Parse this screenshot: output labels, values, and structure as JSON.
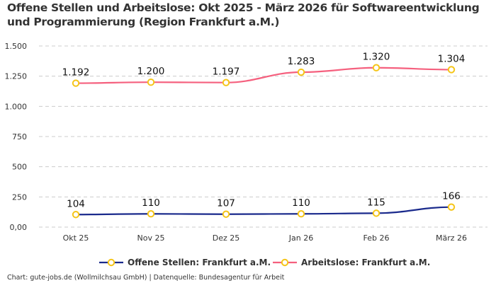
{
  "chart_data": {
    "type": "line",
    "title": "Offene Stellen und Arbeitslose: Okt 2025 - März 2026 für Softwareentwicklung und Programmierung (Region Frankfurt a.M.)",
    "xlabel": "",
    "ylabel": "",
    "categories": [
      "Okt 25",
      "Nov 25",
      "Dez 25",
      "Jan 26",
      "Feb 26",
      "März 26"
    ],
    "ylim": [
      0,
      1500
    ],
    "yticks": [
      0,
      250,
      500,
      750,
      1000,
      1250,
      1500
    ],
    "ytick_labels": [
      "0,00",
      "250",
      "500",
      "750",
      "1.000",
      "1.250",
      "1.500"
    ],
    "grid": true,
    "legend_position": "bottom",
    "series": [
      {
        "name": "Offene Stellen: Frankfurt a.M.",
        "color": "#1a2a8c",
        "values": [
          104,
          110,
          107,
          110,
          115,
          166
        ],
        "labels": [
          "104",
          "110",
          "107",
          "110",
          "115",
          "166"
        ]
      },
      {
        "name": "Arbeitslose: Frankfurt a.M.",
        "color": "#f5607e",
        "values": [
          1192,
          1200,
          1197,
          1283,
          1320,
          1304
        ],
        "labels": [
          "1.192",
          "1.200",
          "1.197",
          "1.283",
          "1.320",
          "1.304"
        ]
      }
    ],
    "marker_color": "#f5c518"
  },
  "footer": "Chart: gute-jobs.de (Wollmilchsau GmbH) | Datenquelle: Bundesagentur für Arbeit"
}
